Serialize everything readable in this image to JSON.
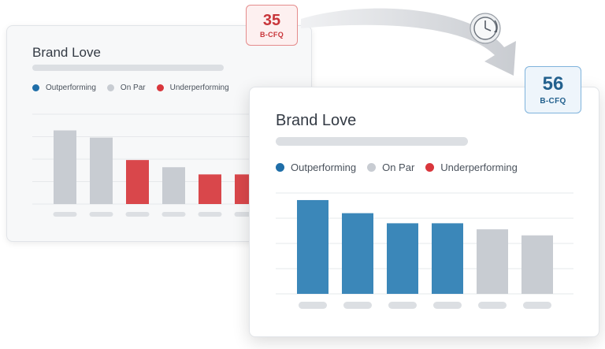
{
  "colors": {
    "outperforming": "#3b87b9",
    "on_par": "#c8ccd2",
    "underperforming": "#d9474b",
    "grid": "#e6e8eb",
    "skeleton": "#dcdfe3"
  },
  "icons": {
    "transition": "curved-arrow",
    "timer": "stopwatch-icon"
  },
  "legend_labels": {
    "outperforming": "Outperforming",
    "on_par": "On Par",
    "underperforming": "Underperforming"
  },
  "chart_data": [
    {
      "type": "bar",
      "title": "Brand Love",
      "score": "35",
      "score_label": "B-CFQ",
      "categories": [
        "",
        "",
        "",
        "",
        "",
        ""
      ],
      "values": [
        82,
        74,
        49,
        41,
        33,
        33
      ],
      "bar_status": [
        "on_par",
        "on_par",
        "underperforming",
        "on_par",
        "underperforming",
        "underperforming"
      ],
      "ylim": [
        0,
        100
      ],
      "grid": true,
      "legend": "top-left"
    },
    {
      "type": "bar",
      "title": "Brand Love",
      "score": "56",
      "score_label": "B-CFQ",
      "categories": [
        "",
        "",
        "",
        "",
        "",
        ""
      ],
      "values": [
        93,
        80,
        70,
        70,
        64,
        58
      ],
      "bar_status": [
        "outperforming",
        "outperforming",
        "outperforming",
        "outperforming",
        "on_par",
        "on_par"
      ],
      "ylim": [
        0,
        100
      ],
      "grid": true,
      "legend": "top-left"
    }
  ]
}
